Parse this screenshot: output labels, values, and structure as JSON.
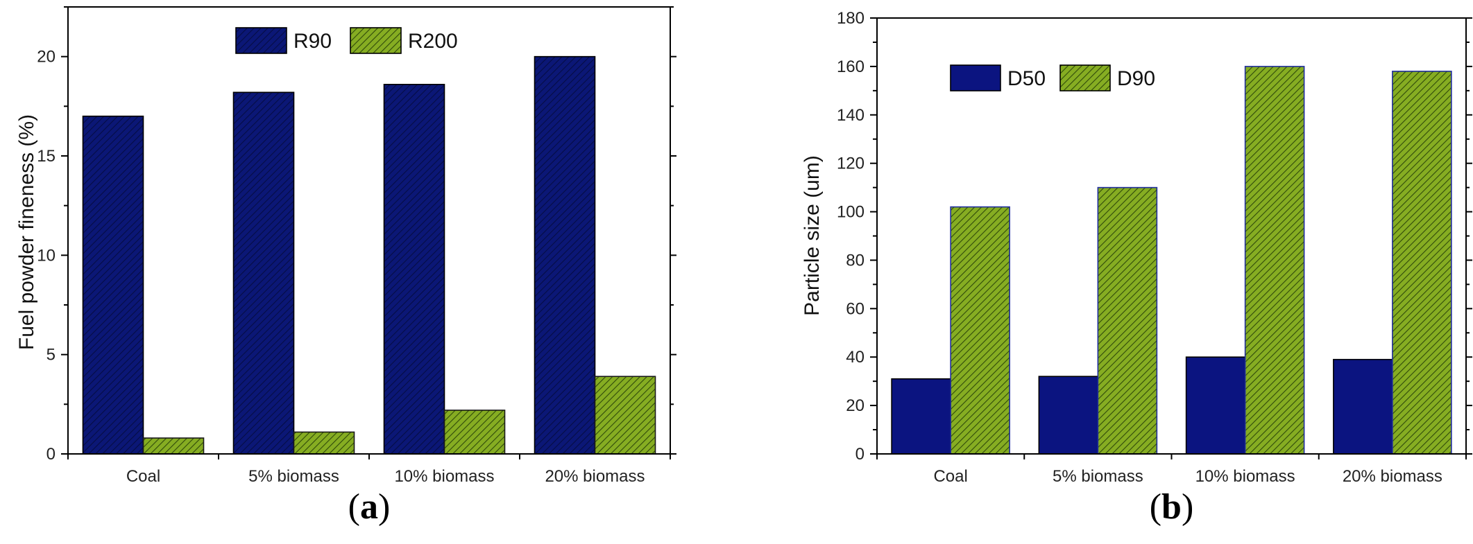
{
  "chart_data": [
    {
      "type": "bar",
      "panel_label": "a",
      "categories": [
        "Coal",
        "5% biomass",
        "10% biomass",
        "20% biomass"
      ],
      "series": [
        {
          "name": "R90",
          "values": [
            17.0,
            18.2,
            18.6,
            20.0
          ],
          "color": "#0b1776",
          "pattern": "hatch-dark"
        },
        {
          "name": "R200",
          "values": [
            0.8,
            1.1,
            2.2,
            3.9
          ],
          "color": "#7ea51e",
          "pattern": "hatch-green"
        }
      ],
      "title": "",
      "xlabel": "",
      "ylabel": "Fuel powder fineness (%)",
      "ylim": [
        0,
        22.5
      ],
      "yticks": [
        0,
        5,
        10,
        15,
        20
      ],
      "ytick_labels": [
        "0",
        "5",
        "10",
        "15",
        "20"
      ],
      "grid": false,
      "legend_position": "top-center"
    },
    {
      "type": "bar",
      "panel_label": "b",
      "categories": [
        "Coal",
        "5% biomass",
        "10% biomass",
        "20% biomass"
      ],
      "series": [
        {
          "name": "D50",
          "values": [
            31,
            32,
            40,
            39
          ],
          "color": "#0b1480",
          "pattern": "solid"
        },
        {
          "name": "D90",
          "values": [
            102,
            110,
            160,
            158
          ],
          "color": "#7ea51e",
          "pattern": "hatch-green"
        }
      ],
      "title": "",
      "xlabel": "",
      "ylabel": "Particle size (um)",
      "ylim": [
        0,
        180
      ],
      "yticks": [
        0,
        20,
        40,
        60,
        80,
        100,
        120,
        140,
        160,
        180
      ],
      "ytick_labels": [
        "0",
        "20",
        "40",
        "60",
        "80",
        "100",
        "120",
        "140",
        "160",
        "180"
      ],
      "grid": false,
      "legend_position": "top-left"
    }
  ]
}
